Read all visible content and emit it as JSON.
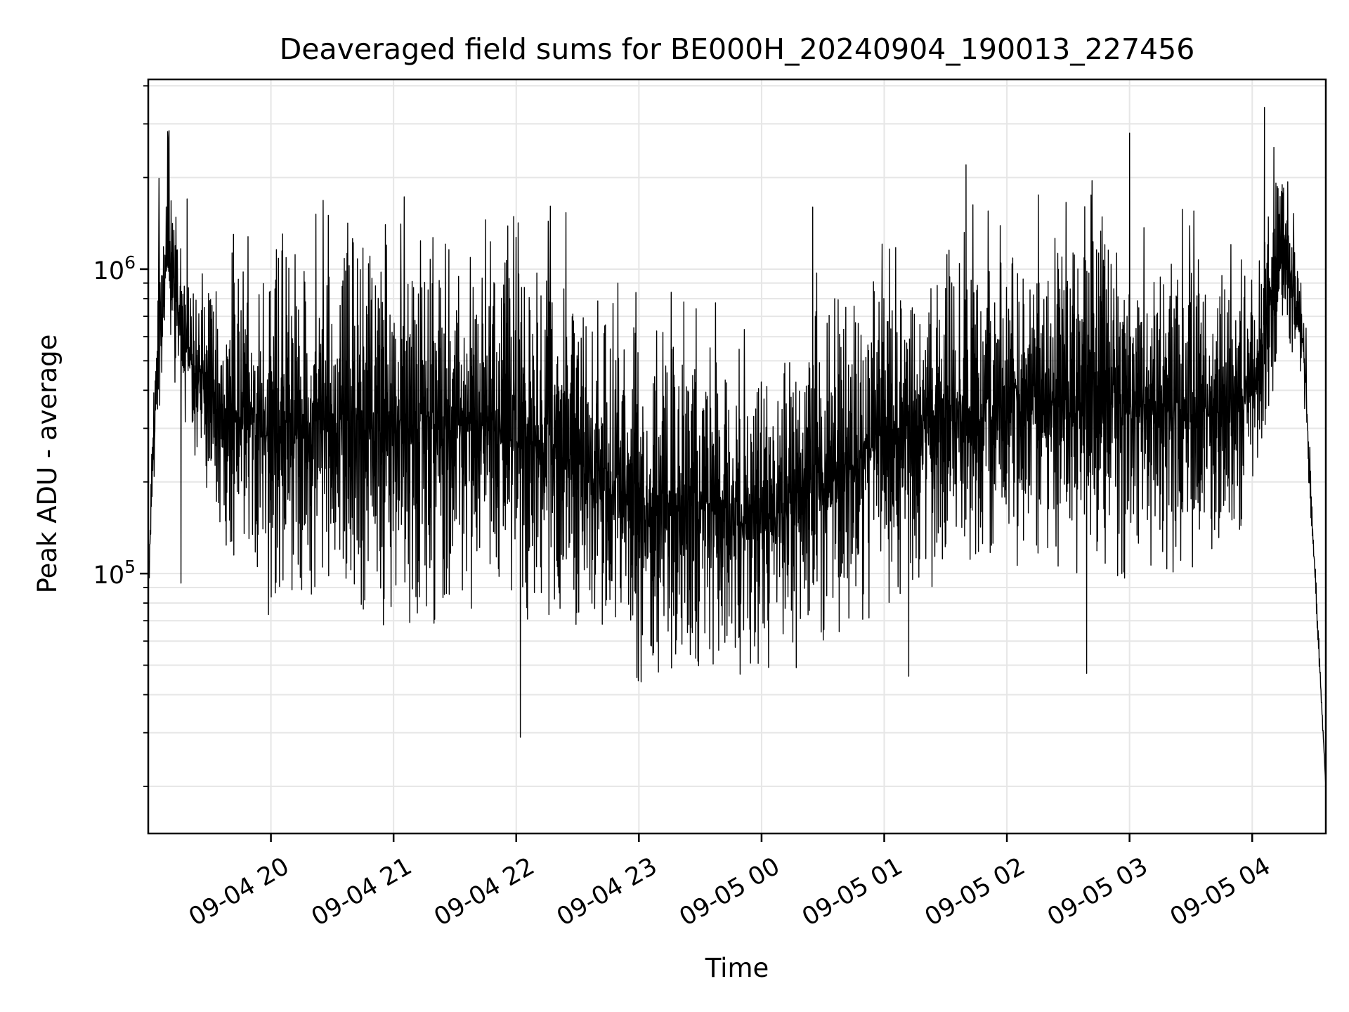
{
  "chart_data": {
    "type": "line",
    "title": "Deaveraged field sums for BE000H_20240904_190013_227456",
    "xlabel": "Time",
    "ylabel": "Peak ADU - average",
    "yscale": "log",
    "ylim": [
      14000,
      4200000
    ],
    "xlim": [
      "2024-09-04 19:00:00",
      "2024-09-05 04:36:00"
    ],
    "grid": true,
    "line_color": "#000000",
    "x_ticks": [
      {
        "value": "2024-09-04 20:00",
        "label": "09-04 20"
      },
      {
        "value": "2024-09-04 21:00",
        "label": "09-04 21"
      },
      {
        "value": "2024-09-04 22:00",
        "label": "09-04 22"
      },
      {
        "value": "2024-09-04 23:00",
        "label": "09-04 23"
      },
      {
        "value": "2024-09-05 00:00",
        "label": "09-05 00"
      },
      {
        "value": "2024-09-05 01:00",
        "label": "09-05 01"
      },
      {
        "value": "2024-09-05 02:00",
        "label": "09-05 02"
      },
      {
        "value": "2024-09-05 03:00",
        "label": "09-05 03"
      },
      {
        "value": "2024-09-05 04:00",
        "label": "09-05 04"
      }
    ],
    "y_ticks": [
      {
        "value": 100000,
        "base": "10",
        "exp": "5"
      },
      {
        "value": 1000000,
        "base": "10",
        "exp": "6"
      }
    ],
    "series": [
      {
        "upper_envelope": [
          [
            "2024-09-04 19:00",
            110000
          ],
          [
            "2024-09-04 19:05",
            1800000
          ],
          [
            "2024-09-04 19:10",
            2700000
          ],
          [
            "2024-09-04 19:20",
            1000000
          ],
          [
            "2024-09-04 19:30",
            1000000
          ],
          [
            "2024-09-04 19:40",
            1000000
          ],
          [
            "2024-09-04 19:50",
            1200000
          ],
          [
            "2024-09-04 20:00",
            1300000
          ],
          [
            "2024-09-04 20:30",
            1300000
          ],
          [
            "2024-09-04 21:00",
            1400000
          ],
          [
            "2024-09-04 21:30",
            1400000
          ],
          [
            "2024-09-04 22:00",
            1400000
          ],
          [
            "2024-09-04 22:20",
            1300000
          ],
          [
            "2024-09-04 22:40",
            900000
          ],
          [
            "2024-09-04 23:00",
            700000
          ],
          [
            "2024-09-04 23:30",
            700000
          ],
          [
            "2024-09-05 00:00",
            500000
          ],
          [
            "2024-09-05 00:30",
            800000
          ],
          [
            "2024-09-05 01:00",
            1000000
          ],
          [
            "2024-09-05 01:30",
            1200000
          ],
          [
            "2024-09-05 02:00",
            1300000
          ],
          [
            "2024-09-05 02:30",
            1400000
          ],
          [
            "2024-09-05 02:45",
            1600000
          ],
          [
            "2024-09-05 03:00",
            1300000
          ],
          [
            "2024-09-05 03:30",
            1200000
          ],
          [
            "2024-09-05 04:00",
            1200000
          ],
          [
            "2024-09-05 04:15",
            2700000
          ],
          [
            "2024-09-05 04:25",
            800000
          ],
          [
            "2024-09-05 04:36",
            20000
          ]
        ],
        "lower_envelope": [
          [
            "2024-09-04 19:00",
            80000
          ],
          [
            "2024-09-04 19:10",
            500000
          ],
          [
            "2024-09-04 19:20",
            250000
          ],
          [
            "2024-09-04 19:30",
            150000
          ],
          [
            "2024-09-04 19:40",
            110000
          ],
          [
            "2024-09-04 19:50",
            75000
          ],
          [
            "2024-09-04 20:00",
            70000
          ],
          [
            "2024-09-04 20:30",
            68000
          ],
          [
            "2024-09-04 21:00",
            65000
          ],
          [
            "2024-09-04 21:30",
            67000
          ],
          [
            "2024-09-04 22:00",
            65000
          ],
          [
            "2024-09-04 22:30",
            50000
          ],
          [
            "2024-09-04 23:00",
            42000
          ],
          [
            "2024-09-04 23:30",
            40000
          ],
          [
            "2024-09-05 00:00",
            40000
          ],
          [
            "2024-09-05 00:30",
            55000
          ],
          [
            "2024-09-05 01:00",
            70000
          ],
          [
            "2024-09-05 01:30",
            90000
          ],
          [
            "2024-09-05 02:00",
            100000
          ],
          [
            "2024-09-05 02:30",
            100000
          ],
          [
            "2024-09-05 03:00",
            90000
          ],
          [
            "2024-09-05 03:30",
            95000
          ],
          [
            "2024-09-05 04:00",
            120000
          ],
          [
            "2024-09-05 04:15",
            600000
          ],
          [
            "2024-09-05 04:25",
            400000
          ],
          [
            "2024-09-05 04:36",
            20000
          ]
        ],
        "spikes": [
          [
            "2024-09-04 19:10",
            2700000
          ],
          [
            "2024-09-04 19:19",
            1700000
          ],
          [
            "2024-09-04 19:16",
            93000
          ],
          [
            "2024-09-04 20:56",
            1400000
          ],
          [
            "2024-09-04 22:02",
            29000
          ],
          [
            "2024-09-04 23:22",
            780000
          ],
          [
            "2024-09-05 00:25",
            1600000
          ],
          [
            "2024-09-05 01:40",
            2200000
          ],
          [
            "2024-09-05 03:00",
            2800000
          ],
          [
            "2024-09-05 04:06",
            3400000
          ],
          [
            "2024-09-05 02:39",
            47000
          ],
          [
            "2024-09-05 01:12",
            46000
          ]
        ]
      }
    ]
  }
}
